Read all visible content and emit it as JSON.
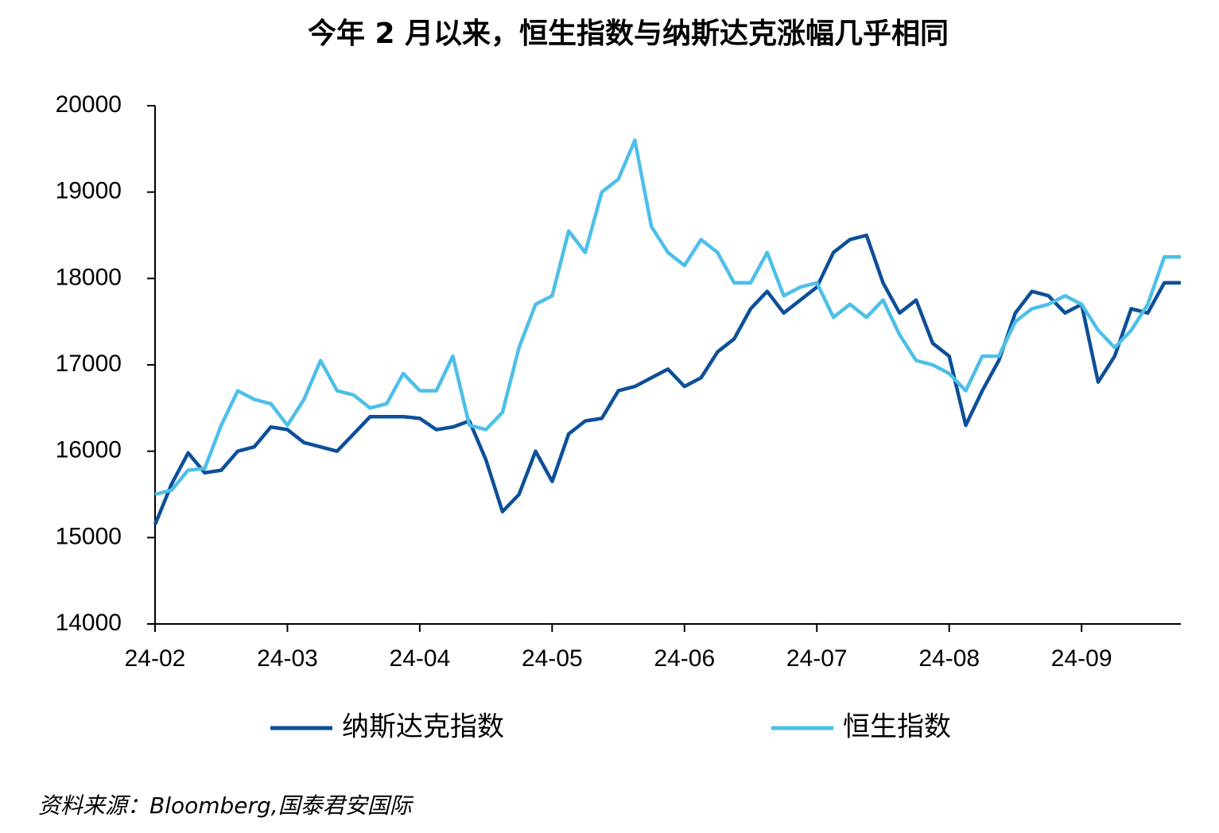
{
  "chart_data": {
    "type": "line",
    "title": "今年 2 月以来，恒生指数与纳斯达克涨幅几乎相同",
    "source": "资料来源：Bloomberg,国泰君安国际",
    "categories": [
      "24-02",
      null,
      null,
      null,
      null,
      null,
      null,
      null,
      "24-03",
      null,
      null,
      null,
      null,
      null,
      null,
      null,
      "24-04",
      null,
      null,
      null,
      null,
      null,
      null,
      null,
      "24-05",
      null,
      null,
      null,
      null,
      null,
      null,
      null,
      "24-06",
      null,
      null,
      null,
      null,
      null,
      null,
      null,
      "24-07",
      null,
      null,
      null,
      null,
      null,
      null,
      null,
      "24-08",
      null,
      null,
      null,
      null,
      null,
      null,
      null,
      "24-09",
      null,
      null,
      null,
      null,
      null,
      null
    ],
    "series": [
      {
        "name": "纳斯达克指数",
        "color": "#0d4f98",
        "values": [
          15150,
          15620,
          15980,
          15750,
          15780,
          16000,
          16050,
          16280,
          16250,
          16100,
          16050,
          16000,
          16200,
          16400,
          16400,
          16400,
          16380,
          16250,
          16280,
          16350,
          15900,
          15300,
          15500,
          16000,
          15650,
          16200,
          16350,
          16380,
          16700,
          16750,
          16850,
          16950,
          16750,
          16850,
          17150,
          17300,
          17650,
          17850,
          17600,
          17750,
          17900,
          18300,
          18450,
          18500,
          17950,
          17600,
          17750,
          17250,
          17100,
          16300,
          16700,
          17050,
          17600,
          17850,
          17800,
          17600,
          17700,
          16800,
          17100,
          17650,
          17600,
          17950,
          17950
        ]
      },
      {
        "name": "恒生指数",
        "color": "#4dbfe8",
        "values": [
          15500,
          15550,
          15780,
          15800,
          16300,
          16700,
          16600,
          16550,
          16300,
          16600,
          17050,
          16700,
          16650,
          16500,
          16550,
          16900,
          16700,
          16700,
          17100,
          16300,
          16250,
          16450,
          17200,
          17700,
          17800,
          18550,
          18300,
          19000,
          19150,
          19600,
          18600,
          18300,
          18150,
          18450,
          18300,
          17950,
          17950,
          18300,
          17800,
          17900,
          17950,
          17550,
          17700,
          17550,
          17750,
          17350,
          17050,
          17000,
          16900,
          16700,
          17100,
          17100,
          17500,
          17650,
          17700,
          17800,
          17700,
          17400,
          17200,
          17400,
          17700,
          18250,
          18250
        ]
      }
    ],
    "ylim": [
      14000,
      20000
    ],
    "yticks": [
      14000,
      15000,
      16000,
      17000,
      18000,
      19000,
      20000
    ]
  }
}
